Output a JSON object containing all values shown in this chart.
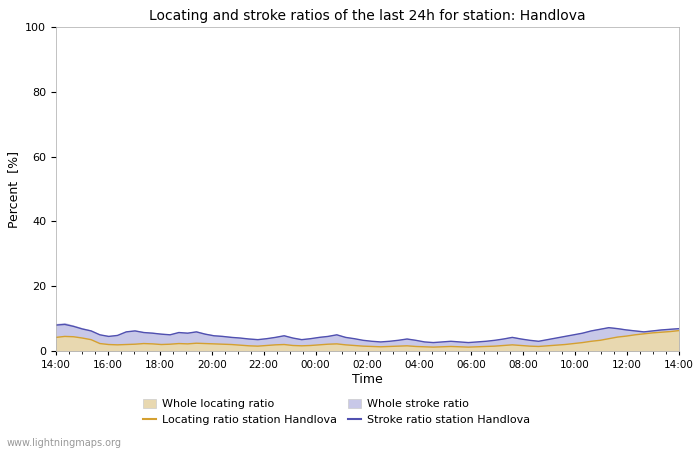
{
  "title": "Locating and stroke ratios of the last 24h for station: Handlova",
  "xlabel": "Time",
  "ylabel": "Percent  [%]",
  "xlim_labels": [
    "14:00",
    "16:00",
    "18:00",
    "20:00",
    "22:00",
    "00:00",
    "02:00",
    "04:00",
    "06:00",
    "08:00",
    "10:00",
    "12:00",
    "14:00"
  ],
  "ylim": [
    0,
    100
  ],
  "yticks": [
    0,
    20,
    40,
    60,
    80,
    100
  ],
  "yticks_minor": [
    10,
    30,
    50,
    70,
    90
  ],
  "background_color": "#ffffff",
  "plot_bg_color": "#ffffff",
  "grid_color": "#dddddd",
  "watermark": "www.lightningmaps.org",
  "whole_locating_color": "#e8d8b0",
  "whole_stroke_color": "#c8c8e8",
  "locating_line_color": "#d4a030",
  "stroke_line_color": "#5050b0",
  "whole_locating_ratio": [
    4.5,
    4.8,
    4.6,
    4.2,
    3.8,
    2.5,
    2.2,
    2.0,
    2.1,
    2.3,
    2.5,
    2.4,
    2.2,
    2.3,
    2.5,
    2.4,
    2.6,
    2.5,
    2.4,
    2.3,
    2.2,
    2.0,
    1.8,
    1.7,
    1.8,
    2.0,
    2.2,
    1.8,
    1.7,
    1.8,
    2.0,
    2.2,
    2.4,
    2.0,
    1.8,
    1.6,
    1.5,
    1.4,
    1.5,
    1.6,
    1.7,
    1.5,
    1.4,
    1.3,
    1.4,
    1.5,
    1.4,
    1.3,
    1.4,
    1.5,
    1.6,
    1.8,
    2.0,
    1.8,
    1.6,
    1.5,
    1.7,
    1.9,
    2.2,
    2.5,
    2.8,
    3.2,
    3.5,
    4.0,
    4.5,
    4.8,
    5.2,
    5.5,
    5.8,
    6.0,
    6.2,
    6.5
  ],
  "whole_stroke_ratio": [
    8.5,
    8.8,
    8.0,
    7.2,
    6.5,
    5.2,
    4.8,
    5.0,
    6.2,
    6.5,
    6.0,
    5.8,
    5.5,
    5.2,
    6.0,
    5.8,
    6.2,
    5.5,
    5.0,
    4.8,
    4.5,
    4.2,
    4.0,
    3.8,
    4.0,
    4.5,
    5.0,
    4.2,
    3.8,
    4.0,
    4.5,
    4.8,
    5.2,
    4.5,
    4.0,
    3.5,
    3.2,
    3.0,
    3.2,
    3.5,
    4.0,
    3.5,
    3.0,
    2.8,
    3.0,
    3.2,
    3.0,
    2.8,
    3.0,
    3.2,
    3.5,
    4.0,
    4.5,
    4.0,
    3.5,
    3.2,
    3.8,
    4.2,
    4.8,
    5.2,
    5.8,
    6.5,
    7.0,
    7.5,
    7.2,
    6.8,
    6.5,
    6.2,
    6.5,
    6.8,
    7.0,
    7.2
  ],
  "locating_line_ratio": [
    4.2,
    4.5,
    4.4,
    4.0,
    3.5,
    2.3,
    2.0,
    1.9,
    2.0,
    2.1,
    2.3,
    2.2,
    2.0,
    2.1,
    2.3,
    2.2,
    2.4,
    2.3,
    2.2,
    2.1,
    2.0,
    1.8,
    1.6,
    1.5,
    1.7,
    1.9,
    2.0,
    1.7,
    1.6,
    1.7,
    1.9,
    2.1,
    2.2,
    1.9,
    1.7,
    1.5,
    1.4,
    1.3,
    1.4,
    1.5,
    1.6,
    1.4,
    1.3,
    1.2,
    1.3,
    1.4,
    1.3,
    1.2,
    1.3,
    1.4,
    1.5,
    1.7,
    1.9,
    1.7,
    1.5,
    1.4,
    1.6,
    1.8,
    2.0,
    2.3,
    2.6,
    3.0,
    3.3,
    3.8,
    4.3,
    4.6,
    5.0,
    5.3,
    5.6,
    5.8,
    6.0,
    6.3
  ],
  "stroke_line_ratio": [
    8.0,
    8.2,
    7.6,
    6.8,
    6.2,
    5.0,
    4.5,
    4.8,
    5.9,
    6.2,
    5.7,
    5.5,
    5.2,
    5.0,
    5.7,
    5.5,
    5.9,
    5.2,
    4.7,
    4.5,
    4.2,
    4.0,
    3.7,
    3.5,
    3.8,
    4.2,
    4.7,
    4.0,
    3.5,
    3.8,
    4.2,
    4.5,
    5.0,
    4.2,
    3.8,
    3.3,
    3.0,
    2.8,
    3.0,
    3.3,
    3.7,
    3.3,
    2.8,
    2.6,
    2.8,
    3.0,
    2.8,
    2.6,
    2.8,
    3.0,
    3.3,
    3.7,
    4.2,
    3.7,
    3.3,
    3.0,
    3.5,
    4.0,
    4.5,
    5.0,
    5.5,
    6.2,
    6.7,
    7.2,
    6.9,
    6.5,
    6.2,
    5.9,
    6.2,
    6.5,
    6.7,
    6.9
  ]
}
